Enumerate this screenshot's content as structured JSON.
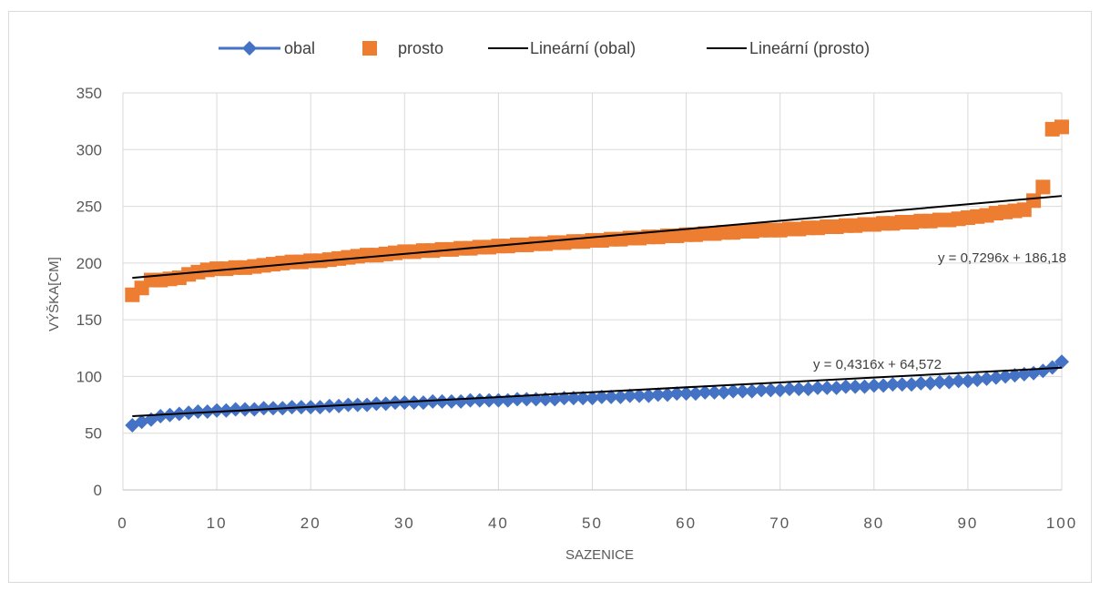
{
  "chart_data": {
    "type": "scatter",
    "xlabel": "SAZENICE",
    "ylabel": "VÝŠKA[CM]",
    "xlim": [
      0,
      100
    ],
    "ylim": [
      0,
      350
    ],
    "x_ticks": [
      "0",
      "10",
      "20",
      "30",
      "40",
      "50",
      "60",
      "70",
      "80",
      "90",
      "100"
    ],
    "y_ticks": [
      "0",
      "50",
      "100",
      "150",
      "200",
      "250",
      "300",
      "350"
    ],
    "grid": true,
    "legend_position": "top",
    "legend": [
      "obal",
      "prosto",
      "Lineární (obal)",
      "Lineární (prosto)"
    ],
    "series": [
      {
        "name": "obal",
        "marker": "diamond",
        "line": true,
        "color": "#4472C4",
        "x": [
          1,
          2,
          3,
          4,
          5,
          6,
          7,
          8,
          9,
          10,
          11,
          12,
          13,
          14,
          15,
          16,
          17,
          18,
          19,
          20,
          21,
          22,
          23,
          24,
          25,
          26,
          27,
          28,
          29,
          30,
          31,
          32,
          33,
          34,
          35,
          36,
          37,
          38,
          39,
          40,
          41,
          42,
          43,
          44,
          45,
          46,
          47,
          48,
          49,
          50,
          51,
          52,
          53,
          54,
          55,
          56,
          57,
          58,
          59,
          60,
          61,
          62,
          63,
          64,
          65,
          66,
          67,
          68,
          69,
          70,
          71,
          72,
          73,
          74,
          75,
          76,
          77,
          78,
          79,
          80,
          81,
          82,
          83,
          84,
          85,
          86,
          87,
          88,
          89,
          90,
          91,
          92,
          93,
          94,
          95,
          96,
          97,
          98,
          99,
          100
        ],
        "values": [
          57,
          60,
          62,
          65,
          66,
          67,
          68,
          69,
          69,
          70,
          70,
          71,
          71,
          71,
          72,
          72,
          72,
          73,
          73,
          73,
          73,
          74,
          74,
          75,
          75,
          75,
          76,
          76,
          77,
          77,
          77,
          77,
          78,
          78,
          78,
          78,
          79,
          79,
          79,
          79,
          79,
          80,
          80,
          80,
          80,
          80,
          81,
          81,
          81,
          81,
          82,
          82,
          82,
          83,
          83,
          83,
          84,
          84,
          85,
          85,
          85,
          86,
          86,
          86,
          87,
          87,
          87,
          88,
          88,
          88,
          89,
          89,
          89,
          90,
          90,
          90,
          91,
          91,
          91,
          92,
          92,
          93,
          93,
          93,
          94,
          94,
          95,
          95,
          96,
          96,
          97,
          98,
          99,
          100,
          101,
          102,
          103,
          105,
          108,
          113
        ]
      },
      {
        "name": "prosto",
        "marker": "square",
        "line": false,
        "color": "#ED7D31",
        "x": [
          1,
          2,
          3,
          4,
          5,
          6,
          7,
          8,
          9,
          10,
          11,
          12,
          13,
          14,
          15,
          16,
          17,
          18,
          19,
          20,
          21,
          22,
          23,
          24,
          25,
          26,
          27,
          28,
          29,
          30,
          31,
          32,
          33,
          34,
          35,
          36,
          37,
          38,
          39,
          40,
          41,
          42,
          43,
          44,
          45,
          46,
          47,
          48,
          49,
          50,
          51,
          52,
          53,
          54,
          55,
          56,
          57,
          58,
          59,
          60,
          61,
          62,
          63,
          64,
          65,
          66,
          67,
          68,
          69,
          70,
          71,
          72,
          73,
          74,
          75,
          76,
          77,
          78,
          79,
          80,
          81,
          82,
          83,
          84,
          85,
          86,
          87,
          88,
          89,
          90,
          91,
          92,
          93,
          94,
          95,
          96,
          97,
          98,
          99,
          100
        ],
        "values": [
          172,
          178,
          185,
          185,
          186,
          187,
          190,
          192,
          194,
          195,
          195,
          196,
          196,
          197,
          198,
          199,
          200,
          201,
          201,
          202,
          202,
          203,
          204,
          205,
          206,
          207,
          207,
          208,
          209,
          210,
          210,
          211,
          211,
          212,
          212,
          213,
          213,
          214,
          214,
          215,
          215,
          216,
          216,
          217,
          217,
          218,
          218,
          219,
          219,
          220,
          220,
          221,
          221,
          222,
          222,
          223,
          223,
          224,
          224,
          225,
          225,
          226,
          226,
          227,
          227,
          228,
          228,
          229,
          229,
          229,
          230,
          230,
          231,
          231,
          232,
          232,
          233,
          233,
          234,
          234,
          235,
          235,
          236,
          236,
          237,
          237,
          238,
          238,
          239,
          240,
          241,
          242,
          244,
          245,
          246,
          247,
          255,
          267,
          318,
          320
        ]
      },
      {
        "name": "Lineární (obal)",
        "type": "trendline",
        "color": "#000000",
        "slope": 0.4316,
        "intercept": 64.572,
        "x_range": [
          1,
          100
        ],
        "equation": "y = 0,4316x + 64,572"
      },
      {
        "name": "Lineární (prosto)",
        "type": "trendline",
        "color": "#000000",
        "slope": 0.7296,
        "intercept": 186.18,
        "x_range": [
          1,
          100
        ],
        "equation": "y = 0,7296x + 186,18"
      }
    ]
  }
}
